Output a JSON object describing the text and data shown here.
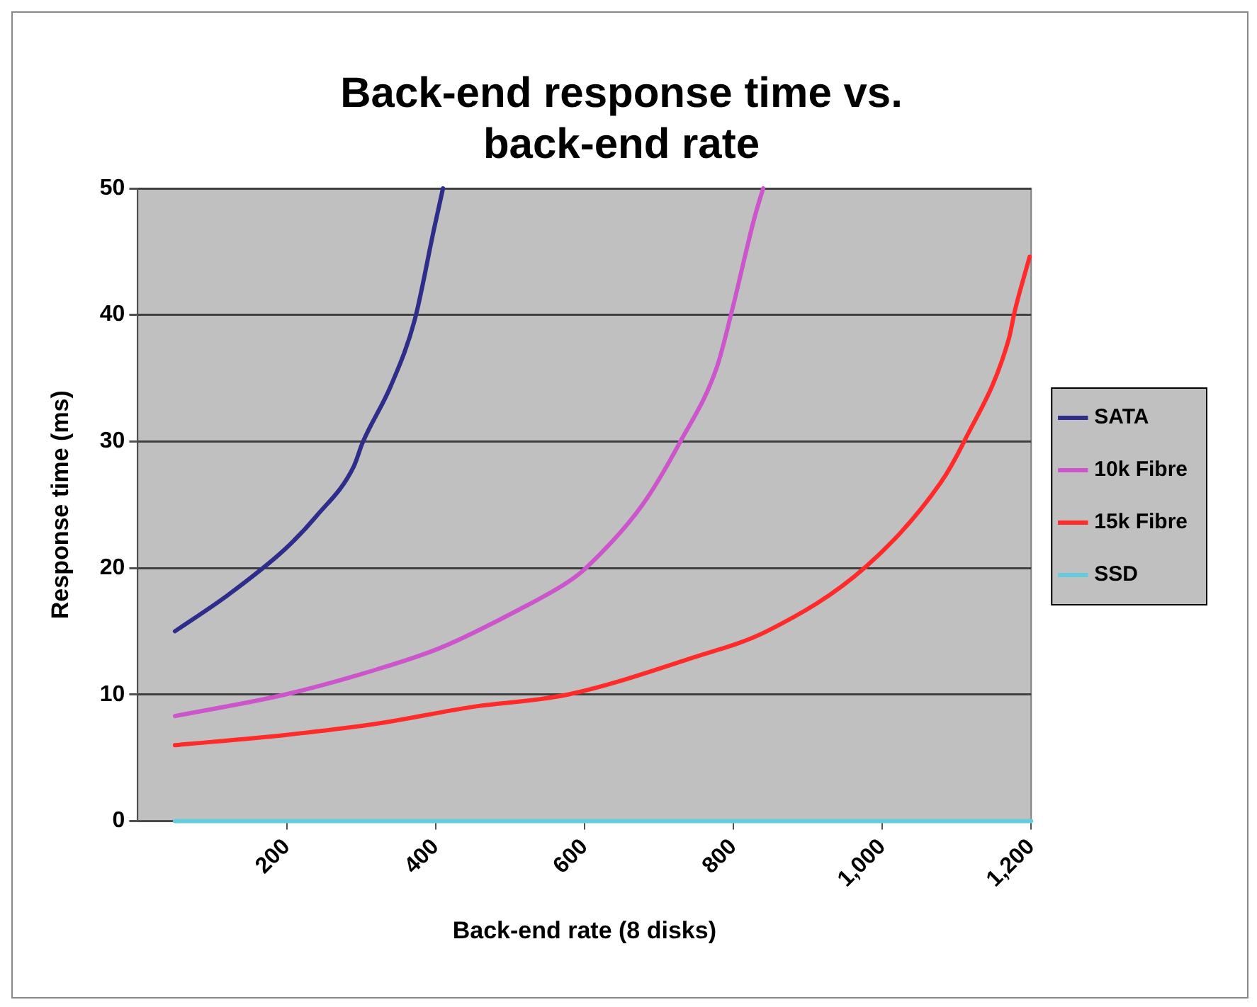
{
  "chart_data": {
    "type": "line",
    "title": "Back-end response time vs. back-end rate",
    "xlabel": "Back-end rate (8 disks)",
    "ylabel": "Response time (ms)",
    "xlim": [
      0,
      1200
    ],
    "xticks": [
      200,
      400,
      600,
      800,
      {
        "value": 1000,
        "label": "1,000"
      },
      {
        "value": 1200,
        "label": "1,200"
      }
    ],
    "ylim": [
      0,
      50
    ],
    "yticks": [
      0,
      10,
      20,
      30,
      40,
      50
    ],
    "grid": "y",
    "legend": "right",
    "marker": "none",
    "line_style": "solid",
    "series": [
      {
        "name": "SATA",
        "color": "#2e2e8a",
        "x": [
          50,
          122,
          198,
          240,
          290,
          302,
          340,
          372,
          398,
          410
        ],
        "values": [
          15,
          17.9,
          21.5,
          24.1,
          28,
          29.9,
          34.4,
          39.6,
          46.8,
          50
        ]
      },
      {
        "name": "10k Fibre",
        "color": "#cc55cc",
        "x": [
          50,
          198,
          322,
          407,
          515,
          578,
          602,
          678,
          728,
          778,
          798,
          828,
          840
        ],
        "values": [
          8.3,
          10,
          12,
          13.7,
          16.8,
          18.9,
          20,
          25,
          29.9,
          35.9,
          40.3,
          47.6,
          50
        ]
      },
      {
        "name": "15k Fibre",
        "color": "#ff2a2a",
        "x": [
          50,
          198,
          322,
          447,
          578,
          745,
          845,
          978,
          1078,
          1110,
          1170,
          1178,
          1198
        ],
        "values": [
          6,
          6.8,
          7.7,
          9,
          10,
          12.9,
          15,
          20.1,
          26.7,
          30,
          38.1,
          40.3,
          44.6
        ]
      },
      {
        "name": "SSD",
        "color": "#66ccdd",
        "x": [
          50,
          1200
        ],
        "values": [
          0,
          0
        ]
      }
    ]
  }
}
